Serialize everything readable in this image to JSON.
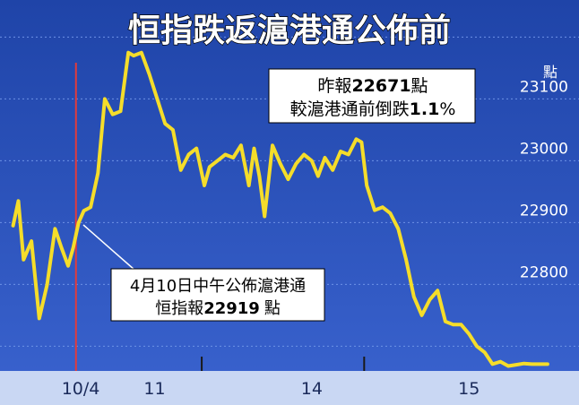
{
  "title": "恒指跌返滬港通公佈前",
  "colors": {
    "background_top": "#1f44a8",
    "background_bottom": "#3a63cf",
    "line": "#f5dd2a",
    "marker": "#e23b3b",
    "grid": "#6e92e6",
    "axis_band": "#c9d7f3"
  },
  "annotations": {
    "close_line1_prefix": "昨報",
    "close_line1_value": "22671",
    "close_line1_suffix": "點",
    "close_line2_prefix": "較滬港通前倒跌",
    "close_line2_value": "1.1",
    "close_line2_suffix": "%",
    "announce_line1": "4月10日中午公佈滬港通",
    "announce_line2_prefix": "恒指報",
    "announce_line2_value": "22919",
    "announce_line2_suffix": "點"
  },
  "chart_data": {
    "type": "line",
    "title": "恒指跌返滬港通公佈前",
    "ylabel": "點",
    "ylim": [
      22660,
      23260
    ],
    "y_ticks": [
      22800,
      22900,
      23000,
      23100
    ],
    "x_tick_labels": [
      "10/4",
      "11",
      "14",
      "15"
    ],
    "x_tick_positions": [
      0.09,
      1.5,
      4.5,
      7.5
    ],
    "day_boundaries": [
      2.4,
      5.5
    ],
    "marker_x": 0,
    "grid": true,
    "x": [
      -1.2,
      -1.1,
      -1.0,
      -0.85,
      -0.7,
      -0.55,
      -0.4,
      -0.28,
      -0.15,
      -0.05,
      0.05,
      0.15,
      0.28,
      0.42,
      0.55,
      0.7,
      0.85,
      1.0,
      1.1,
      1.25,
      1.4,
      1.55,
      1.7,
      1.85,
      2.0,
      2.15,
      2.3,
      2.45,
      2.55,
      2.7,
      2.85,
      3.0,
      3.15,
      3.3,
      3.4,
      3.5,
      3.6,
      3.75,
      3.9,
      4.05,
      4.2,
      4.35,
      4.5,
      4.62,
      4.75,
      4.9,
      5.05,
      5.2,
      5.35,
      5.45,
      5.55,
      5.7,
      5.85,
      6.0,
      6.15,
      6.3,
      6.45,
      6.6,
      6.75,
      6.9,
      7.05,
      7.2,
      7.35,
      7.5,
      7.65,
      7.8,
      7.95,
      8.1,
      8.25,
      8.4,
      8.55,
      8.7,
      8.8,
      8.9,
      9.0
    ],
    "y": [
      22895,
      22935,
      22840,
      22870,
      22745,
      22800,
      22890,
      22860,
      22830,
      22860,
      22900,
      22919,
      22925,
      22980,
      23100,
      23075,
      23080,
      23175,
      23170,
      23175,
      23140,
      23100,
      23060,
      23050,
      22985,
      23010,
      23020,
      22960,
      22990,
      23000,
      23010,
      23005,
      23025,
      22960,
      23020,
      22975,
      22910,
      23025,
      22995,
      22970,
      22995,
      23010,
      23000,
      22975,
      23005,
      22985,
      23015,
      23010,
      23035,
      23030,
      22960,
      22920,
      22925,
      22915,
      22890,
      22840,
      22780,
      22750,
      22775,
      22790,
      22740,
      22735,
      22735,
      22720,
      22700,
      22690,
      22671,
      22675,
      22668,
      22670,
      22672,
      22671,
      22671,
      22671,
      22671
    ]
  }
}
